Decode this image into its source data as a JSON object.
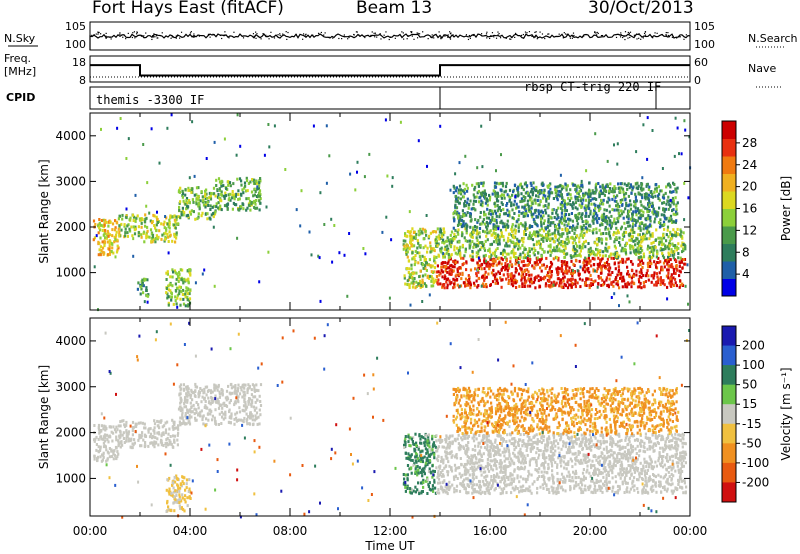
{
  "header": {
    "station": "Fort Hays East (fitACF)",
    "beam": "Beam 13",
    "date": "30/Oct/2013"
  },
  "top_panel": {
    "left_label": "N.Sky",
    "left_ticks": [
      "10^5",
      "10^0"
    ],
    "right_label": "N.Search",
    "right_ticks": [
      "10^5",
      "10^0"
    ]
  },
  "freq_panel": {
    "left_label_1": "Freq.",
    "left_label_2": "[MHz]",
    "left_ticks": [
      "18",
      "8"
    ],
    "right_label": "Nave",
    "right_ticks": [
      "60",
      "0"
    ]
  },
  "cpid_panel": {
    "label": "CPID",
    "programs": [
      "themis -3300 IF",
      "rbsp CT-trig 220 IF"
    ]
  },
  "colors": {
    "power": [
      "#0000e6",
      "#1f5fa8",
      "#2e7d5c",
      "#4a9a4a",
      "#8ccf3a",
      "#dcd820",
      "#f0b020",
      "#f07a10",
      "#e83010",
      "#cc0000"
    ],
    "velocity_pos": [
      "#1a1ab0",
      "#2a5fd0",
      "#2e7d5c",
      "#6cc64a"
    ],
    "velocity_neg": [
      "#c8c8c0",
      "#f0c040",
      "#f09020",
      "#e85a10",
      "#d01010"
    ]
  },
  "chart_data": [
    {
      "type": "heatmap",
      "name": "power",
      "xlabel": "",
      "ylabel": "Slant Range [km]",
      "xlim": [
        0,
        24
      ],
      "ylim": [
        180,
        4500
      ],
      "yticks": [
        1000,
        2000,
        3000,
        4000
      ],
      "colorbar": {
        "label": "Power [dB]",
        "ticks": [
          "28",
          "24",
          "20",
          "16",
          "12",
          "8",
          "4"
        ],
        "range": [
          0,
          30
        ]
      },
      "bands": [
        {
          "t": [
            0.1,
            1.1
          ],
          "r": [
            1400,
            2200
          ],
          "v": 18
        },
        {
          "t": [
            1.1,
            2.0
          ],
          "r": [
            1800,
            2300
          ],
          "v": 14
        },
        {
          "t": [
            2.0,
            3.5
          ],
          "r": [
            1700,
            2300
          ],
          "v": 15
        },
        {
          "t": [
            3.5,
            5.0
          ],
          "r": [
            2200,
            2900
          ],
          "v": 12
        },
        {
          "t": [
            5.0,
            6.8
          ],
          "r": [
            2400,
            3100
          ],
          "v": 11
        },
        {
          "t": [
            1.8,
            2.3
          ],
          "r": [
            500,
            900
          ],
          "v": 9
        },
        {
          "t": [
            3.0,
            4.0
          ],
          "r": [
            300,
            1100
          ],
          "v": 13
        },
        {
          "t": [
            12.5,
            13.8
          ],
          "r": [
            700,
            2000
          ],
          "v": 15
        },
        {
          "t": [
            13.8,
            23.8
          ],
          "r": [
            700,
            1350
          ],
          "v": 27
        },
        {
          "t": [
            13.8,
            23.8
          ],
          "r": [
            1350,
            2000
          ],
          "v": 13
        },
        {
          "t": [
            14.5,
            23.5
          ],
          "r": [
            2000,
            3000
          ],
          "v": 9
        }
      ]
    },
    {
      "type": "heatmap",
      "name": "velocity",
      "xlabel": "Time UT",
      "ylabel": "Slant Range [km]",
      "xlim": [
        0,
        24
      ],
      "ylim": [
        180,
        4500
      ],
      "yticks": [
        1000,
        2000,
        3000,
        4000
      ],
      "xticks": [
        "00:00",
        "04:00",
        "08:00",
        "12:00",
        "16:00",
        "20:00",
        "00:00"
      ],
      "colorbar": {
        "label": "Velocity [m s⁻¹]",
        "ticks": [
          "200",
          "100",
          "50",
          "15",
          "-15",
          "-50",
          "-100",
          "-200"
        ],
        "range": [
          -250,
          250
        ]
      },
      "bands": [
        {
          "t": [
            0.1,
            1.1
          ],
          "r": [
            1400,
            2200
          ],
          "v": 0
        },
        {
          "t": [
            1.1,
            3.5
          ],
          "r": [
            1700,
            2300
          ],
          "v": 0
        },
        {
          "t": [
            3.5,
            6.8
          ],
          "r": [
            2200,
            3100
          ],
          "v": 0
        },
        {
          "t": [
            3.0,
            4.0
          ],
          "r": [
            300,
            1100
          ],
          "v": -20
        },
        {
          "t": [
            12.5,
            13.8
          ],
          "r": [
            700,
            2000
          ],
          "v": 40
        },
        {
          "t": [
            13.8,
            23.8
          ],
          "r": [
            700,
            2000
          ],
          "v": 0
        },
        {
          "t": [
            14.5,
            23.5
          ],
          "r": [
            2000,
            3000
          ],
          "v": -60
        }
      ]
    }
  ],
  "freq_series": {
    "segments": [
      {
        "t": [
          0,
          2.0
        ],
        "mhz": 14.5
      },
      {
        "t": [
          2.0,
          14.0
        ],
        "mhz": 10.5
      },
      {
        "t": [
          14.0,
          24.0
        ],
        "mhz": 14.5
      }
    ]
  },
  "cpid_switch_times": [
    14.0
  ]
}
